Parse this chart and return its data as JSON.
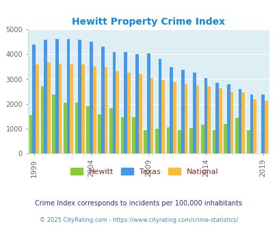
{
  "title": "Hewitt Property Crime Index",
  "years": [
    1999,
    2000,
    2001,
    2002,
    2003,
    2004,
    2005,
    2006,
    2007,
    2008,
    2009,
    2010,
    2011,
    2012,
    2013,
    2014,
    2015,
    2016,
    2017,
    2018,
    2019
  ],
  "hewitt": [
    1550,
    2720,
    2390,
    2050,
    2050,
    1900,
    1570,
    1840,
    1470,
    1460,
    950,
    1010,
    1050,
    950,
    1020,
    1170,
    960,
    1200,
    1450,
    950,
    0
  ],
  "texas": [
    4400,
    4580,
    4600,
    4610,
    4590,
    4510,
    4300,
    4090,
    4090,
    4010,
    4030,
    3800,
    3480,
    3370,
    3260,
    3040,
    2840,
    2780,
    2590,
    2380,
    2385
  ],
  "national": [
    3580,
    3670,
    3620,
    3600,
    3600,
    3500,
    3470,
    3330,
    3250,
    3220,
    3030,
    2960,
    2880,
    2780,
    2730,
    2720,
    2640,
    2490,
    2460,
    2200,
    2140
  ],
  "hewitt_color": "#88cc33",
  "texas_color": "#4499ee",
  "national_color": "#ffbb33",
  "plot_bg_color": "#ddeef4",
  "title_color": "#1188dd",
  "legend_label_color": "#882222",
  "note_color": "#223388",
  "footer_color": "#5588aa",
  "tick_color": "#666666",
  "ylim": [
    0,
    5000
  ],
  "yticks": [
    0,
    1000,
    2000,
    3000,
    4000,
    5000
  ],
  "xtick_years": [
    1999,
    2004,
    2009,
    2014,
    2019
  ],
  "note_text": "Crime Index corresponds to incidents per 100,000 inhabitants",
  "footer_text": "© 2025 CityRating.com - https://www.cityrating.com/crime-statistics/"
}
